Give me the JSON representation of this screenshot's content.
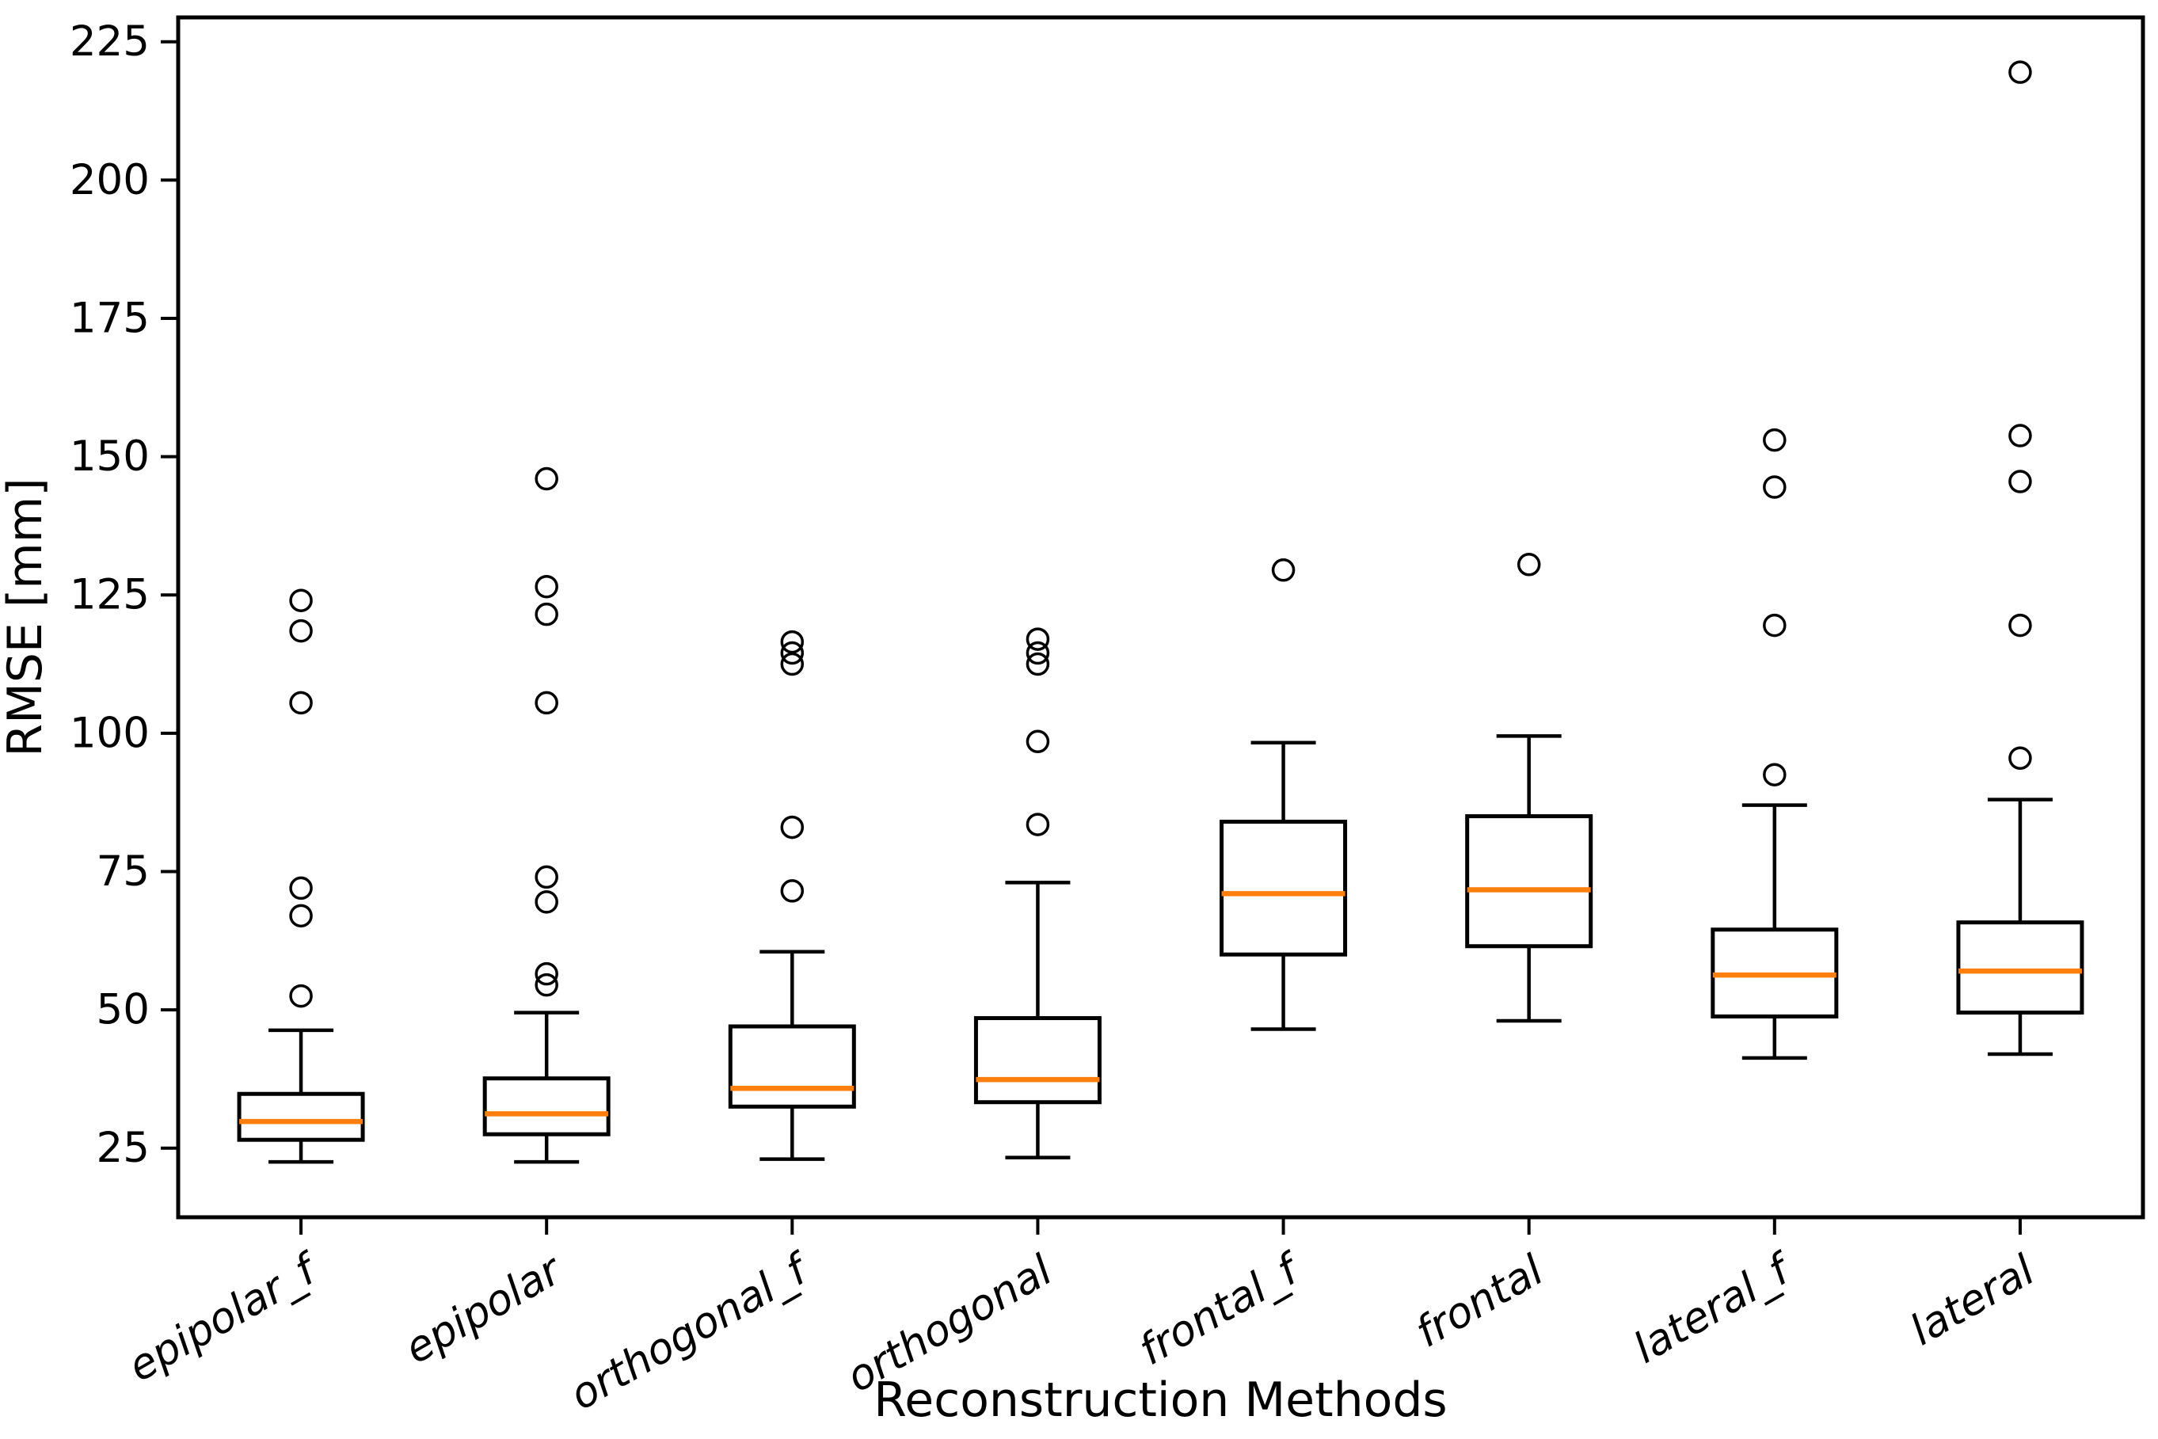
{
  "figure": {
    "background_color": "#ffffff",
    "axes_color": "#000000"
  },
  "chart_data": {
    "type": "box",
    "title": "",
    "xlabel": "Reconstruction Methods",
    "ylabel": "RMSE [mm]",
    "categories": [
      "epipolar_f",
      "epipolar",
      "orthogonal_f",
      "orthogonal",
      "frontal_f",
      "frontal",
      "lateral_f",
      "lateral"
    ],
    "yticks": [
      25,
      50,
      75,
      100,
      125,
      150,
      175,
      200,
      225
    ],
    "ylim": [
      12.5,
      229.4
    ],
    "grid": false,
    "legend": null,
    "tick_label_rotation_deg": 30,
    "colors": {
      "median": "#ff7f0e",
      "line": "#000000",
      "box_fill": "none"
    },
    "boxes": [
      {
        "label": "epipolar_f",
        "whislo": 22.5,
        "q1": 26.5,
        "med": 29.8,
        "q3": 34.8,
        "whishi": 46.3,
        "fliers": [
          52.5,
          67.0,
          72.0,
          105.5,
          118.5,
          124.0
        ]
      },
      {
        "label": "epipolar",
        "whislo": 22.5,
        "q1": 27.5,
        "med": 31.2,
        "q3": 37.6,
        "whishi": 49.5,
        "fliers": [
          54.5,
          56.5,
          69.5,
          74.0,
          105.5,
          121.5,
          126.5,
          146.0
        ]
      },
      {
        "label": "orthogonal_f",
        "whislo": 23.0,
        "q1": 32.5,
        "med": 35.8,
        "q3": 47.0,
        "whishi": 60.5,
        "fliers": [
          71.5,
          83.0,
          112.5,
          114.5,
          116.5
        ]
      },
      {
        "label": "orthogonal",
        "whislo": 23.3,
        "q1": 33.3,
        "med": 37.4,
        "q3": 48.5,
        "whishi": 73.0,
        "fliers": [
          83.5,
          98.5,
          112.5,
          114.5,
          117.0
        ]
      },
      {
        "label": "frontal_f",
        "whislo": 46.5,
        "q1": 60.0,
        "med": 71.0,
        "q3": 84.0,
        "whishi": 98.3,
        "fliers": [
          129.5
        ]
      },
      {
        "label": "frontal",
        "whislo": 48.0,
        "q1": 61.5,
        "med": 71.7,
        "q3": 85.0,
        "whishi": 99.5,
        "fliers": [
          130.5
        ]
      },
      {
        "label": "lateral_f",
        "whislo": 41.3,
        "q1": 48.8,
        "med": 56.3,
        "q3": 64.5,
        "whishi": 87.0,
        "fliers": [
          92.5,
          119.5,
          144.5,
          153.0
        ]
      },
      {
        "label": "lateral",
        "whislo": 42.0,
        "q1": 49.5,
        "med": 57.0,
        "q3": 65.8,
        "whishi": 88.0,
        "fliers": [
          95.5,
          119.5,
          145.5,
          153.8,
          219.5
        ]
      }
    ]
  }
}
